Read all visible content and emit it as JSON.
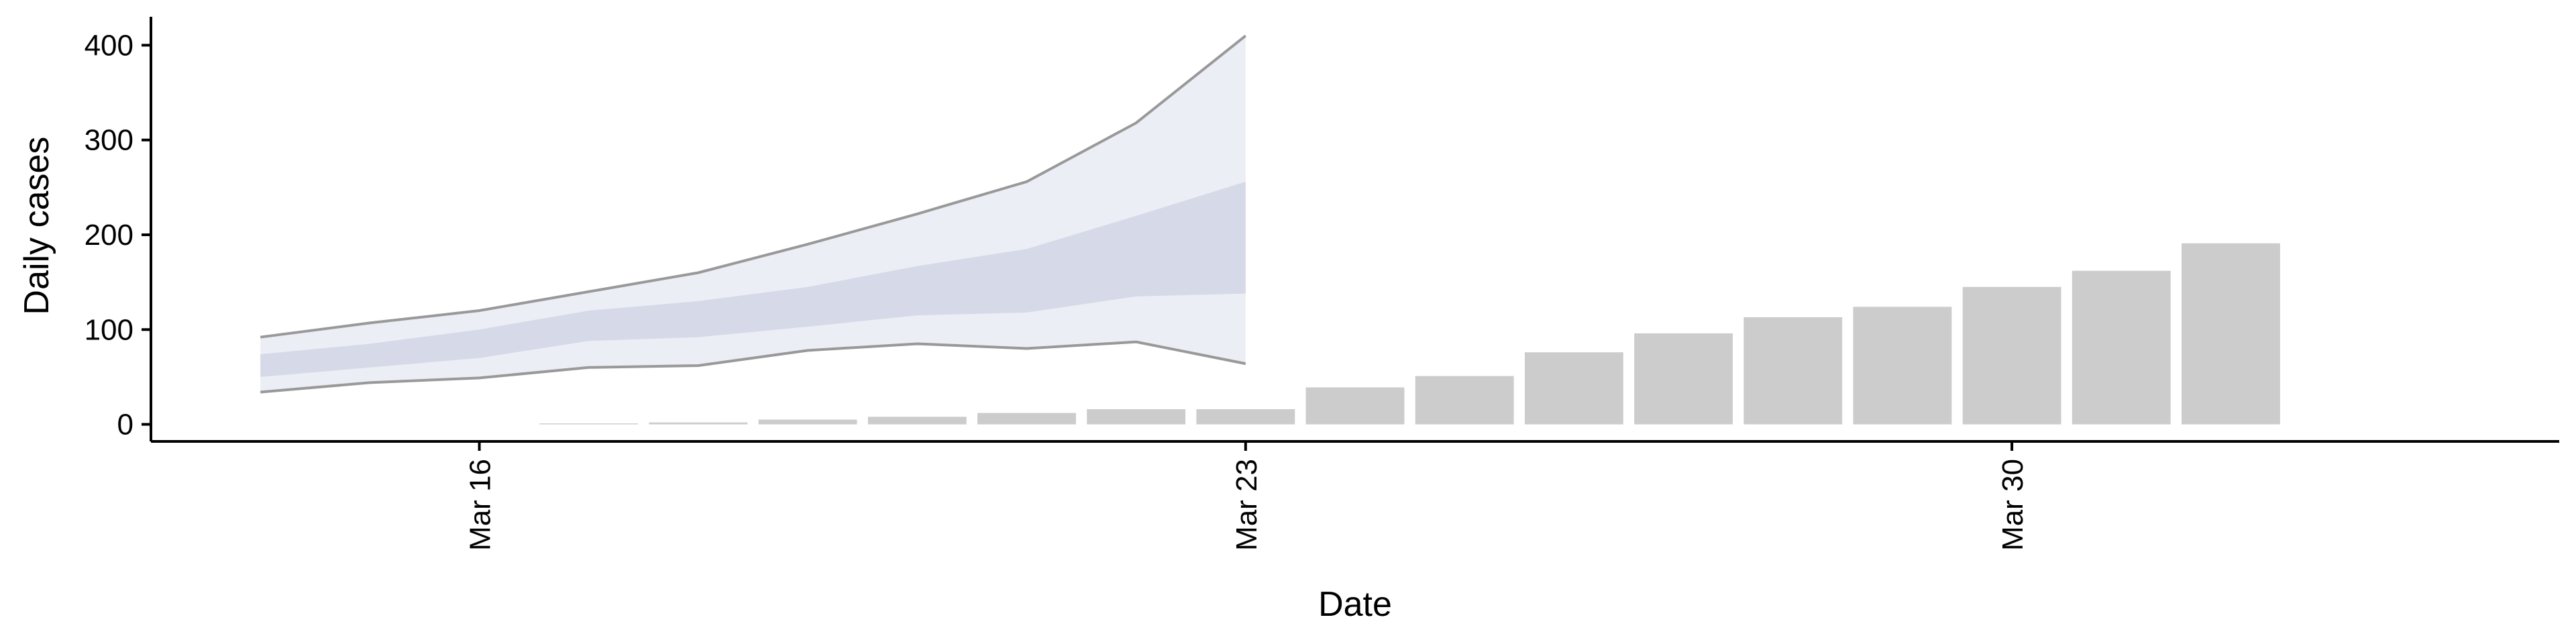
{
  "chart_data": {
    "type": "bar",
    "xlabel": "Date",
    "ylabel": "Daily cases",
    "x_ticks": [
      {
        "date": "2020-03-16",
        "label": "Mar 16"
      },
      {
        "date": "2020-03-23",
        "label": "Mar 23"
      },
      {
        "date": "2020-03-30",
        "label": "Mar 30"
      }
    ],
    "y_ticks": [
      0,
      100,
      200,
      300,
      400
    ],
    "ylim": [
      -18,
      430
    ],
    "xlim": [
      "2020-03-13",
      "2020-04-04"
    ],
    "grid": false,
    "legend": "none",
    "bars": {
      "color": "#cccccc",
      "dates": [
        "2020-03-17",
        "2020-03-18",
        "2020-03-19",
        "2020-03-20",
        "2020-03-21",
        "2020-03-22",
        "2020-03-23",
        "2020-03-24",
        "2020-03-25",
        "2020-03-26",
        "2020-03-27",
        "2020-03-28",
        "2020-03-29",
        "2020-03-30",
        "2020-03-31",
        "2020-04-01"
      ],
      "values": [
        1,
        2,
        5,
        8,
        12,
        16,
        16,
        39,
        51,
        76,
        96,
        113,
        124,
        145,
        162,
        191
      ]
    },
    "forecast": {
      "dates": [
        "2020-03-14",
        "2020-03-15",
        "2020-03-16",
        "2020-03-17",
        "2020-03-18",
        "2020-03-19",
        "2020-03-20",
        "2020-03-21",
        "2020-03-22",
        "2020-03-23"
      ],
      "outer_lower": [
        34,
        44,
        49,
        60,
        62,
        78,
        85,
        80,
        87,
        64
      ],
      "outer_upper": [
        92,
        107,
        120,
        140,
        160,
        190,
        222,
        256,
        318,
        410
      ],
      "inner_lower": [
        50,
        60,
        70,
        88,
        92,
        103,
        115,
        118,
        135,
        138
      ],
      "inner_upper": [
        74,
        85,
        100,
        120,
        130,
        145,
        167,
        185,
        220,
        256
      ],
      "outer_fill": "#eceef5",
      "inner_fill": "#d6d9e8",
      "line_color": "#999999"
    }
  }
}
